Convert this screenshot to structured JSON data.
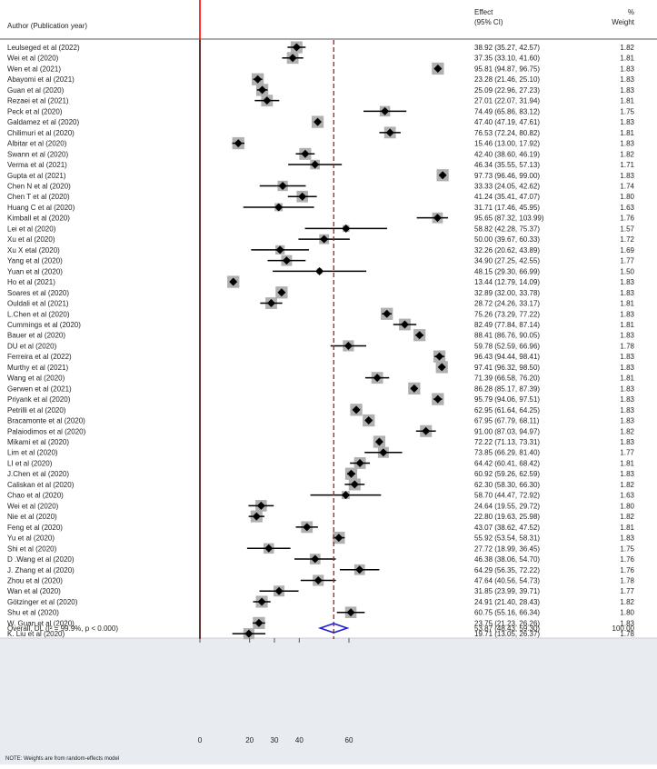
{
  "header": {
    "author_col": "Author (Publication year)",
    "effect_col_line1": "Effect",
    "effect_col_line2": "(95% CI)",
    "weight_col_line1": "%",
    "weight_col_line2": "Weight"
  },
  "overall": {
    "label": "Overall, DL (I² = 99.9%, p < 0.000)",
    "ci_text": "53.87 (48.43, 59.30)",
    "weight_text": "100.00",
    "estimate": 53.87,
    "lower": 48.43,
    "upper": 59.3
  },
  "note": "NOTE: Weights are from random-effects model",
  "chart_data": {
    "type": "forest",
    "x_ticks": [
      0,
      20,
      30,
      40,
      60
    ],
    "xlim": [
      0,
      100
    ],
    "null_line": 0,
    "pooled_line": 53.87,
    "colors": {
      "null_line": "#ff0000",
      "pooled_line": "#a02020",
      "diamond": "#1f1fd1",
      "weight_box": "#b0b0b0",
      "background": "#e8ecf0"
    },
    "studies": [
      {
        "label": "Leulseged  et al (2022)",
        "est": 38.92,
        "lo": 35.27,
        "hi": 42.57,
        "ci": "38.92 (35.27, 42.57)",
        "weight": "1.82"
      },
      {
        "label": "Wei et al (2020)",
        "est": 37.35,
        "lo": 33.1,
        "hi": 41.6,
        "ci": "37.35 (33.10, 41.60)",
        "weight": "1.81"
      },
      {
        "label": "Wen et al (2021)",
        "est": 95.81,
        "lo": 94.87,
        "hi": 96.75,
        "ci": "95.81 (94.87, 96.75)",
        "weight": "1.83"
      },
      {
        "label": "Abayomi et al (2021)",
        "est": 23.28,
        "lo": 21.46,
        "hi": 25.1,
        "ci": "23.28 (21.46, 25.10)",
        "weight": "1.83"
      },
      {
        "label": "Guan et al (2020)",
        "est": 25.09,
        "lo": 22.96,
        "hi": 27.23,
        "ci": "25.09 (22.96, 27.23)",
        "weight": "1.83"
      },
      {
        "label": "Rezaei et al (2021)",
        "est": 27.01,
        "lo": 22.07,
        "hi": 31.94,
        "ci": "27.01 (22.07, 31.94)",
        "weight": "1.81"
      },
      {
        "label": "Peck et al (2020)",
        "est": 74.49,
        "lo": 65.86,
        "hi": 83.12,
        "ci": "74.49 (65.86, 83.12)",
        "weight": "1.75"
      },
      {
        "label": "Galdamez et al (2020)",
        "est": 47.4,
        "lo": 47.19,
        "hi": 47.61,
        "ci": "47.40 (47.19, 47.61)",
        "weight": "1.83"
      },
      {
        "label": "Chilimuri et al (2020)",
        "est": 76.53,
        "lo": 72.24,
        "hi": 80.82,
        "ci": "76.53 (72.24, 80.82)",
        "weight": "1.81"
      },
      {
        "label": "Albitar et al (2020)",
        "est": 15.46,
        "lo": 13.0,
        "hi": 17.92,
        "ci": "15.46 (13.00, 17.92)",
        "weight": "1.83"
      },
      {
        "label": "Swann et al (2020)",
        "est": 42.4,
        "lo": 38.6,
        "hi": 46.19,
        "ci": "42.40 (38.60, 46.19)",
        "weight": "1.82"
      },
      {
        "label": "Verma et al (2021)",
        "est": 46.34,
        "lo": 35.55,
        "hi": 57.13,
        "ci": "46.34 (35.55, 57.13)",
        "weight": "1.71"
      },
      {
        "label": "Gupta et al (2021)",
        "est": 97.73,
        "lo": 96.46,
        "hi": 99.0,
        "ci": "97.73 (96.46, 99.00)",
        "weight": "1.83"
      },
      {
        "label": "Chen N et al (2020)",
        "est": 33.33,
        "lo": 24.05,
        "hi": 42.62,
        "ci": "33.33 (24.05, 42.62)",
        "weight": "1.74"
      },
      {
        "label": "Chen T et al (2020)",
        "est": 41.24,
        "lo": 35.41,
        "hi": 47.07,
        "ci": "41.24 (35.41, 47.07)",
        "weight": "1.80"
      },
      {
        "label": "Huang C et al (2020)",
        "est": 31.71,
        "lo": 17.46,
        "hi": 45.95,
        "ci": "31.71 (17.46, 45.95)",
        "weight": "1.63"
      },
      {
        "label": "Kimball et al (2020)",
        "est": 95.65,
        "lo": 87.32,
        "hi": 103.99,
        "ci": "95.65 (87.32, 103.99)",
        "weight": "1.76"
      },
      {
        "label": "Lei et al (2020)",
        "est": 58.82,
        "lo": 42.28,
        "hi": 75.37,
        "ci": "58.82 (42.28, 75.37)",
        "weight": "1.57"
      },
      {
        "label": "Xu et al (2020)",
        "est": 50.0,
        "lo": 39.67,
        "hi": 60.33,
        "ci": "50.00 (39.67, 60.33)",
        "weight": "1.72"
      },
      {
        "label": "Xu X etal (2020)",
        "est": 32.26,
        "lo": 20.62,
        "hi": 43.89,
        "ci": "32.26 (20.62, 43.89)",
        "weight": "1.69"
      },
      {
        "label": "Yang et al (2020)",
        "est": 34.9,
        "lo": 27.25,
        "hi": 42.55,
        "ci": "34.90 (27.25, 42.55)",
        "weight": "1.77"
      },
      {
        "label": "Yuan et al (2020)",
        "est": 48.15,
        "lo": 29.3,
        "hi": 66.99,
        "ci": "48.15 (29.30, 66.99)",
        "weight": "1.50"
      },
      {
        "label": "Ho et al (2021)",
        "est": 13.44,
        "lo": 12.79,
        "hi": 14.09,
        "ci": "13.44 (12.79, 14.09)",
        "weight": "1.83"
      },
      {
        "label": "Soares et al (2020)",
        "est": 32.89,
        "lo": 32.0,
        "hi": 33.78,
        "ci": "32.89 (32.00, 33.78)",
        "weight": "1.83"
      },
      {
        "label": "Ouldali et al  (2021)",
        "est": 28.72,
        "lo": 24.26,
        "hi": 33.17,
        "ci": "28.72 (24.26, 33.17)",
        "weight": "1.81"
      },
      {
        "label": "L.Chen et al (2020)",
        "est": 75.26,
        "lo": 73.29,
        "hi": 77.22,
        "ci": "75.26 (73.29, 77.22)",
        "weight": "1.83"
      },
      {
        "label": "Cummings et al (2020)",
        "est": 82.49,
        "lo": 77.84,
        "hi": 87.14,
        "ci": "82.49 (77.84, 87.14)",
        "weight": "1.81"
      },
      {
        "label": "Bauer et al (2020)",
        "est": 88.41,
        "lo": 86.76,
        "hi": 90.05,
        "ci": "88.41 (86.76, 90.05)",
        "weight": "1.83"
      },
      {
        "label": "DU  et al (2020)",
        "est": 59.78,
        "lo": 52.59,
        "hi": 66.96,
        "ci": "59.78 (52.59, 66.96)",
        "weight": "1.78"
      },
      {
        "label": " Ferreira et al (2022)",
        "est": 96.43,
        "lo": 94.44,
        "hi": 98.41,
        "ci": "96.43 (94.44, 98.41)",
        "weight": "1.83"
      },
      {
        "label": "Murthy et al (2021)",
        "est": 97.41,
        "lo": 96.32,
        "hi": 98.5,
        "ci": "97.41 (96.32, 98.50)",
        "weight": "1.83"
      },
      {
        "label": "Wang et al (2020)",
        "est": 71.39,
        "lo": 66.58,
        "hi": 76.2,
        "ci": "71.39 (66.58, 76.20)",
        "weight": "1.81"
      },
      {
        "label": "Gerwen et al (2021)",
        "est": 86.28,
        "lo": 85.17,
        "hi": 87.39,
        "ci": "86.28 (85.17, 87.39)",
        "weight": "1.83"
      },
      {
        "label": "Priyank et al (2020)",
        "est": 95.79,
        "lo": 94.06,
        "hi": 97.51,
        "ci": "95.79 (94.06, 97.51)",
        "weight": "1.83"
      },
      {
        "label": "Petrilli et al (2020)",
        "est": 62.95,
        "lo": 61.64,
        "hi": 64.25,
        "ci": "62.95 (61.64, 64.25)",
        "weight": "1.83"
      },
      {
        "label": "Bracamonte et al (2020)",
        "est": 67.95,
        "lo": 67.79,
        "hi": 68.11,
        "ci": "67.95 (67.79, 68.11)",
        "weight": "1.83"
      },
      {
        "label": "Palaiodimos et al (2020)",
        "est": 91.0,
        "lo": 87.03,
        "hi": 94.97,
        "ci": "91.00 (87.03, 94.97)",
        "weight": "1.82"
      },
      {
        "label": "Mikami et al (2020)",
        "est": 72.22,
        "lo": 71.13,
        "hi": 73.31,
        "ci": "72.22 (71.13, 73.31)",
        "weight": "1.83"
      },
      {
        "label": "Lim et al (2020)",
        "est": 73.85,
        "lo": 66.29,
        "hi": 81.4,
        "ci": "73.85 (66.29, 81.40)",
        "weight": "1.77"
      },
      {
        "label": "LI  et al (2020)",
        "est": 64.42,
        "lo": 60.41,
        "hi": 68.42,
        "ci": "64.42 (60.41, 68.42)",
        "weight": "1.81"
      },
      {
        "label": "J.Chen et al  (2020)",
        "est": 60.92,
        "lo": 59.26,
        "hi": 62.59,
        "ci": "60.92 (59.26, 62.59)",
        "weight": "1.83"
      },
      {
        "label": "Caliskan et al (2020)",
        "est": 62.3,
        "lo": 58.3,
        "hi": 66.3,
        "ci": "62.30 (58.30, 66.30)",
        "weight": "1.82"
      },
      {
        "label": "Chao et al (2020)",
        "est": 58.7,
        "lo": 44.47,
        "hi": 72.92,
        "ci": "58.70 (44.47, 72.92)",
        "weight": "1.63"
      },
      {
        "label": "Wei et al (2020)",
        "est": 24.64,
        "lo": 19.55,
        "hi": 29.72,
        "ci": "24.64 (19.55, 29.72)",
        "weight": "1.80"
      },
      {
        "label": "Nie et al (2020)",
        "est": 22.8,
        "lo": 19.63,
        "hi": 25.98,
        "ci": "22.80 (19.63, 25.98)",
        "weight": "1.82"
      },
      {
        "label": "Feng et al (2020)",
        "est": 43.07,
        "lo": 38.62,
        "hi": 47.52,
        "ci": "43.07 (38.62, 47.52)",
        "weight": "1.81"
      },
      {
        "label": "Yu et al (2020)",
        "est": 55.92,
        "lo": 53.54,
        "hi": 58.31,
        "ci": "55.92 (53.54, 58.31)",
        "weight": "1.83"
      },
      {
        "label": "Shi et al (2020)",
        "est": 27.72,
        "lo": 18.99,
        "hi": 36.45,
        "ci": "27.72 (18.99, 36.45)",
        "weight": "1.75"
      },
      {
        "label": "D .Wang et al (2020)",
        "est": 46.38,
        "lo": 38.06,
        "hi": 54.7,
        "ci": "46.38 (38.06, 54.70)",
        "weight": "1.76"
      },
      {
        "label": "J. Zhang et al (2020)",
        "est": 64.29,
        "lo": 56.35,
        "hi": 72.22,
        "ci": "64.29 (56.35, 72.22)",
        "weight": "1.76"
      },
      {
        "label": "Zhou et al (2020)",
        "est": 47.64,
        "lo": 40.56,
        "hi": 54.73,
        "ci": "47.64 (40.56, 54.73)",
        "weight": "1.78"
      },
      {
        "label": "Wan et al (2020)",
        "est": 31.85,
        "lo": 23.99,
        "hi": 39.71,
        "ci": "31.85 (23.99, 39.71)",
        "weight": "1.77"
      },
      {
        "label": "Götzinger et al (2020)",
        "est": 24.91,
        "lo": 21.4,
        "hi": 28.43,
        "ci": "24.91 (21.40, 28.43)",
        "weight": "1.82"
      },
      {
        "label": "Shu et al (2020)",
        "est": 60.75,
        "lo": 55.16,
        "hi": 66.34,
        "ci": "60.75 (55.16, 66.34)",
        "weight": "1.80"
      },
      {
        "label": "W. Guan et al (2020)",
        "est": 23.75,
        "lo": 21.23,
        "hi": 26.26,
        "ci": "23.75 (21.23, 26.26)",
        "weight": "1.83"
      },
      {
        "label": "K. Liu et al (2020)",
        "est": 19.71,
        "lo": 13.05,
        "hi": 26.37,
        "ci": "19.71 (13.05, 26.37)",
        "weight": "1.78"
      }
    ]
  }
}
